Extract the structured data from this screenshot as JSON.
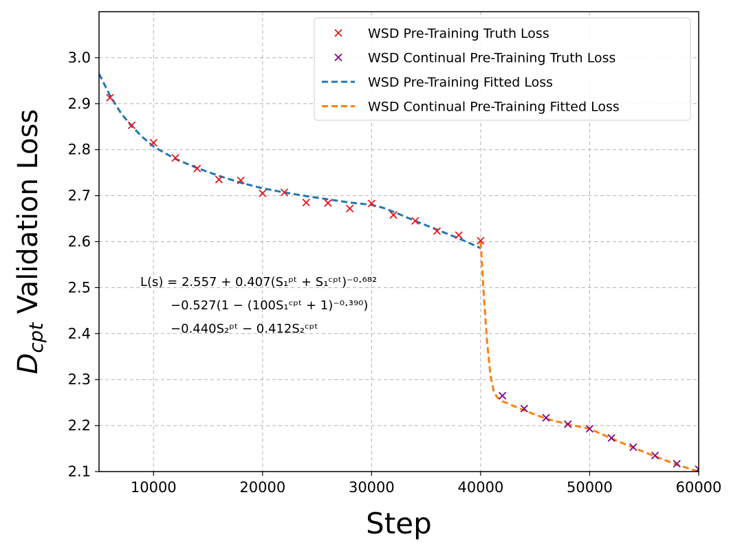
{
  "chart_data": {
    "type": "line",
    "xlabel": "Step",
    "ylabel": {
      "base": "D",
      "sub": "cpt",
      "rest": " Validation Loss"
    },
    "xlim": [
      5000,
      60000
    ],
    "ylim": [
      2.1,
      3.1
    ],
    "xticks": [
      10000,
      20000,
      30000,
      40000,
      50000,
      60000
    ],
    "yticks": [
      2.1,
      2.2,
      2.3,
      2.4,
      2.5,
      2.6,
      2.7,
      2.8,
      2.9,
      3.0
    ],
    "grid": true,
    "legend_position": "top-right",
    "colors": {
      "pt_truth": "#e8141c",
      "cpt_truth": "#800080",
      "pt_fitted": "#1f77b4",
      "cpt_fitted": "#ff7f0e"
    },
    "series": [
      {
        "name": "WSD Pre-Training Truth Loss",
        "kind": "scatter",
        "marker": "x",
        "color": "#e8141c",
        "x": [
          6000,
          8000,
          10000,
          12000,
          14000,
          16000,
          18000,
          20000,
          22000,
          24000,
          26000,
          28000,
          30000,
          32000,
          34000,
          36000,
          38000,
          40000
        ],
        "y": [
          2.913,
          2.853,
          2.815,
          2.782,
          2.759,
          2.735,
          2.733,
          2.705,
          2.707,
          2.685,
          2.684,
          2.672,
          2.683,
          2.658,
          2.645,
          2.623,
          2.614,
          2.602
        ]
      },
      {
        "name": "WSD Continual Pre-Training Truth Loss",
        "kind": "scatter",
        "marker": "x",
        "color": "#800080",
        "x": [
          42000,
          44000,
          46000,
          48000,
          50000,
          52000,
          54000,
          56000,
          58000,
          60000
        ],
        "y": [
          2.265,
          2.237,
          2.217,
          2.203,
          2.193,
          2.173,
          2.153,
          2.135,
          2.117,
          2.105
        ]
      },
      {
        "name": "WSD Pre-Training Fitted Loss",
        "kind": "line",
        "dash": "dashed",
        "color": "#1f77b4",
        "x": [
          5000,
          6000,
          7000,
          8000,
          9000,
          10000,
          11000,
          12000,
          14000,
          16000,
          18000,
          20000,
          22000,
          24000,
          26000,
          28000,
          30000,
          31000,
          32000,
          34000,
          36000,
          38000,
          40000
        ],
        "y": [
          2.965,
          2.918,
          2.88,
          2.851,
          2.827,
          2.807,
          2.793,
          2.78,
          2.76,
          2.743,
          2.728,
          2.716,
          2.707,
          2.699,
          2.692,
          2.685,
          2.68,
          2.674,
          2.665,
          2.645,
          2.626,
          2.607,
          2.586
        ]
      },
      {
        "name": "WSD Continual Pre-Training Fitted Loss",
        "kind": "line",
        "dash": "dashed",
        "color": "#ff7f0e",
        "x": [
          40000,
          40300,
          40600,
          40900,
          41200,
          41500,
          42000,
          43000,
          44000,
          46000,
          48000,
          50000,
          52000,
          54000,
          56000,
          58000,
          60000
        ],
        "y": [
          2.6,
          2.48,
          2.38,
          2.31,
          2.275,
          2.262,
          2.253,
          2.243,
          2.233,
          2.215,
          2.203,
          2.193,
          2.172,
          2.152,
          2.133,
          2.115,
          2.1
        ]
      }
    ],
    "annotation": {
      "line1": "L(s) = 2.557 + 0.407(S₁ᵖᵗ + S₁ᶜᵖᵗ)⁻⁰·⁶⁸²",
      "line2": "−0.527(1 − (100S₁ᶜᵖᵗ + 1)⁻⁰·³⁹⁰)",
      "line3": "−0.440S₂ᵖᵗ − 0.412S₂ᶜᵖᵗ"
    }
  }
}
